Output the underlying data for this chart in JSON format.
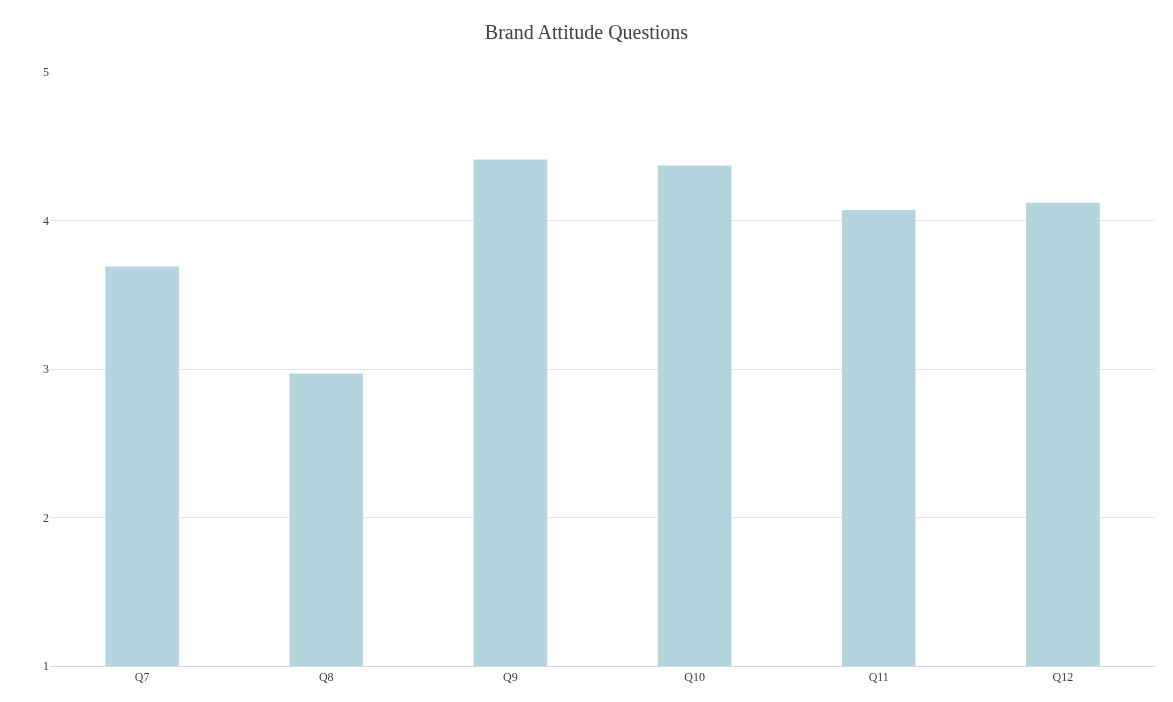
{
  "chart_data": {
    "type": "bar",
    "title": "Brand Attitude Questions",
    "categories": [
      "Q7",
      "Q8",
      "Q9",
      "Q10",
      "Q11",
      "Q12"
    ],
    "values": [
      3.69,
      2.97,
      4.41,
      4.37,
      4.07,
      4.12
    ],
    "color": "#b5d5de",
    "ylim": [
      1,
      5
    ],
    "yticks": [
      1,
      2,
      3,
      4,
      5
    ],
    "grid": "y",
    "legend": false
  }
}
